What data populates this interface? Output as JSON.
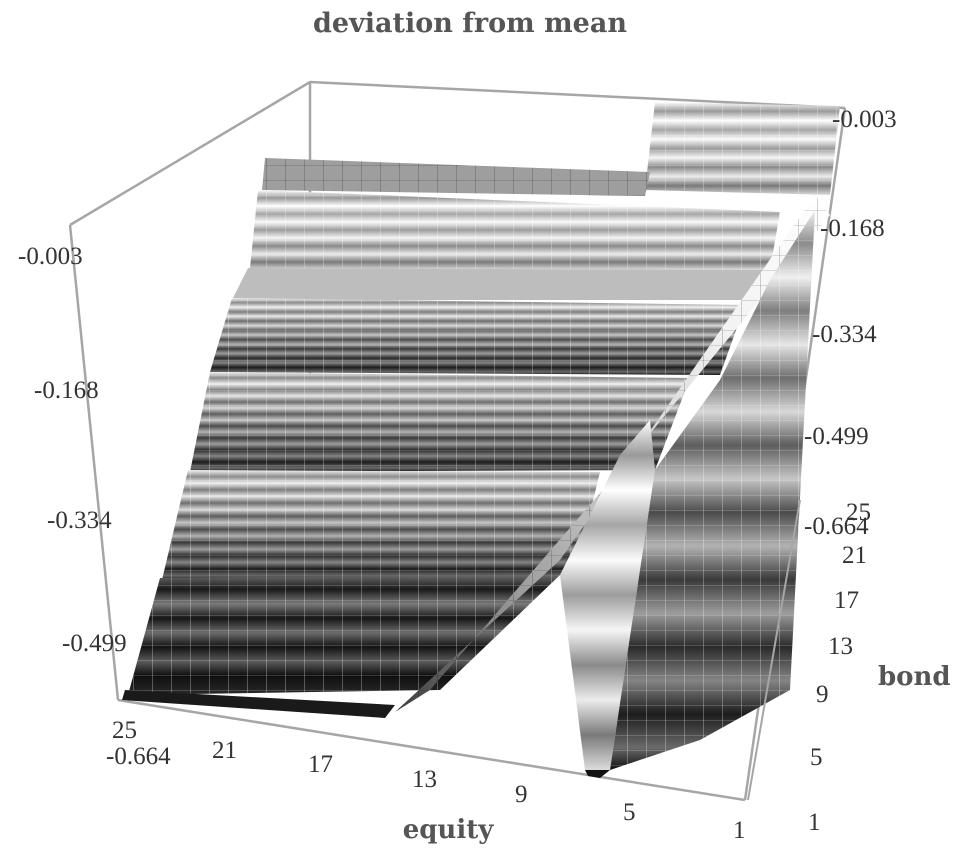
{
  "chart_data": {
    "type": "surface",
    "title": "deviation from mean",
    "xlabel": "equity",
    "ylabel": "bond",
    "zlabel": "",
    "x_ticks": [
      "25",
      "21",
      "17",
      "13",
      "9",
      "5",
      "1"
    ],
    "y_ticks": [
      "1",
      "5",
      "9",
      "13",
      "17",
      "21",
      "25"
    ],
    "z_ticks": [
      "-0.003",
      "-0.168",
      "-0.334",
      "-0.499",
      "-0.664"
    ],
    "zlim": [
      -0.664,
      -0.003
    ],
    "x_range": [
      1,
      25
    ],
    "y_range": [
      1,
      25
    ],
    "grid": false,
    "legend": "none",
    "shading": "grayscale banded"
  }
}
